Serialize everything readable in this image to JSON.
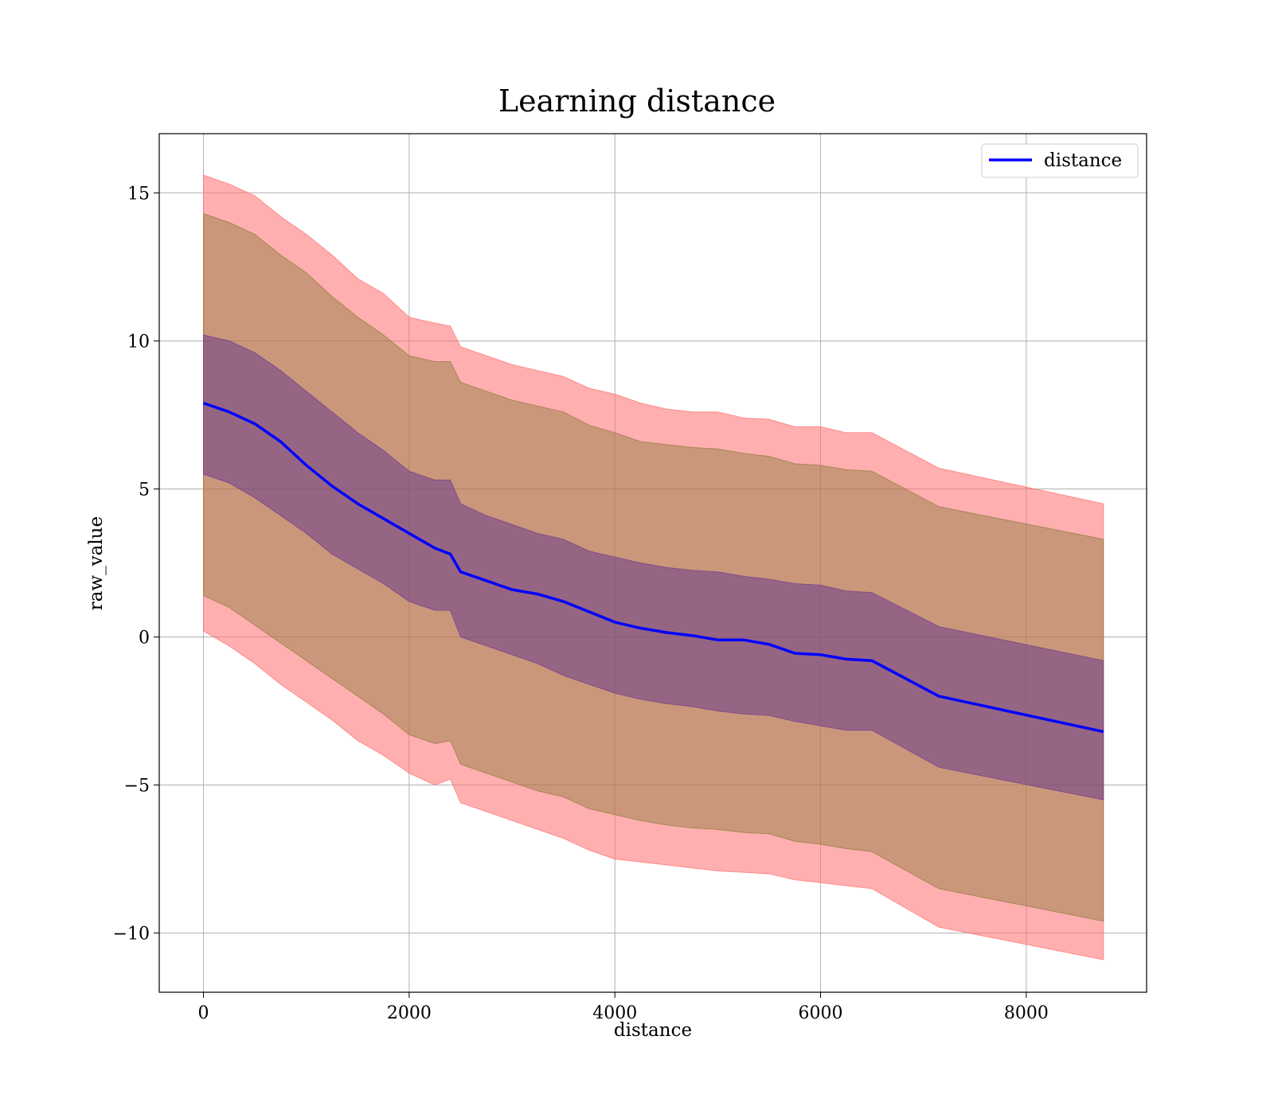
{
  "chart_data": {
    "type": "line",
    "title": "Learning distance",
    "xlabel": "distance",
    "ylabel": "raw_value",
    "xlim": [
      -430,
      9170
    ],
    "ylim": [
      -12.0,
      17.0
    ],
    "xticks": [
      0,
      2000,
      4000,
      6000,
      8000
    ],
    "xtick_labels": [
      "0",
      "2000",
      "4000",
      "6000",
      "8000"
    ],
    "yticks": [
      -10,
      -5,
      0,
      5,
      10,
      15
    ],
    "ytick_labels": [
      "−10",
      "−5",
      "0",
      "5",
      "10",
      "15"
    ],
    "grid": true,
    "legend": {
      "position": "top-right",
      "entries": [
        "distance"
      ]
    },
    "colors": {
      "mean_line": "#0000ff",
      "band_outer": "#ff6e6e",
      "band_mid": "#8c7a3c",
      "band_inner": "#6e3c8c"
    },
    "x": [
      0,
      250,
      500,
      750,
      1000,
      1250,
      1500,
      1750,
      2000,
      2250,
      2400,
      2500,
      2750,
      3000,
      3250,
      3500,
      3750,
      4000,
      4250,
      4500,
      4750,
      5000,
      5250,
      5500,
      5750,
      6000,
      6250,
      6500,
      7150,
      8750
    ],
    "series": [
      {
        "name": "distance",
        "values": [
          7.9,
          7.6,
          7.2,
          6.6,
          5.8,
          5.1,
          4.5,
          4.0,
          3.5,
          3.0,
          2.8,
          2.2,
          1.9,
          1.6,
          1.45,
          1.2,
          0.85,
          0.5,
          0.3,
          0.15,
          0.05,
          -0.1,
          -0.1,
          -0.25,
          -0.55,
          -0.6,
          -0.75,
          -0.8,
          -2.0,
          -3.2
        ]
      }
    ],
    "bands": [
      {
        "lower": [
          0.2,
          -0.3,
          -0.9,
          -1.6,
          -2.2,
          -2.8,
          -3.5,
          -4.0,
          -4.6,
          -5.0,
          -4.8,
          -5.6,
          -5.9,
          -6.2,
          -6.5,
          -6.8,
          -7.2,
          -7.5,
          -7.6,
          -7.7,
          -7.8,
          -7.9,
          -7.95,
          -8.0,
          -8.2,
          -8.3,
          -8.4,
          -8.5,
          -9.8,
          -10.9
        ],
        "upper": [
          15.6,
          15.3,
          14.9,
          14.2,
          13.6,
          12.9,
          12.1,
          11.6,
          10.8,
          10.6,
          10.5,
          9.8,
          9.5,
          9.2,
          9.0,
          8.8,
          8.4,
          8.2,
          7.9,
          7.7,
          7.6,
          7.6,
          7.4,
          7.35,
          7.1,
          7.1,
          6.9,
          6.9,
          5.7,
          4.5
        ]
      },
      {
        "lower": [
          1.4,
          1.0,
          0.4,
          -0.2,
          -0.8,
          -1.4,
          -2.0,
          -2.6,
          -3.3,
          -3.6,
          -3.5,
          -4.3,
          -4.6,
          -4.9,
          -5.2,
          -5.4,
          -5.8,
          -6.0,
          -6.2,
          -6.35,
          -6.45,
          -6.5,
          -6.6,
          -6.65,
          -6.9,
          -7.0,
          -7.15,
          -7.25,
          -8.5,
          -9.6
        ],
        "upper": [
          14.3,
          14.0,
          13.6,
          12.9,
          12.3,
          11.5,
          10.8,
          10.2,
          9.5,
          9.3,
          9.3,
          8.6,
          8.3,
          8.0,
          7.8,
          7.6,
          7.15,
          6.9,
          6.6,
          6.5,
          6.4,
          6.35,
          6.2,
          6.1,
          5.85,
          5.8,
          5.65,
          5.6,
          4.4,
          3.3
        ]
      },
      {
        "lower": [
          5.5,
          5.2,
          4.7,
          4.1,
          3.5,
          2.8,
          2.3,
          1.8,
          1.2,
          0.9,
          0.9,
          0.0,
          -0.3,
          -0.6,
          -0.9,
          -1.3,
          -1.6,
          -1.9,
          -2.1,
          -2.25,
          -2.35,
          -2.5,
          -2.6,
          -2.65,
          -2.85,
          -3.0,
          -3.15,
          -3.15,
          -4.4,
          -5.5
        ],
        "upper": [
          10.2,
          10.0,
          9.6,
          9.0,
          8.3,
          7.6,
          6.9,
          6.3,
          5.6,
          5.3,
          5.3,
          4.5,
          4.1,
          3.8,
          3.5,
          3.3,
          2.9,
          2.7,
          2.5,
          2.35,
          2.25,
          2.2,
          2.05,
          1.95,
          1.8,
          1.75,
          1.55,
          1.5,
          0.35,
          -0.8
        ]
      }
    ]
  }
}
